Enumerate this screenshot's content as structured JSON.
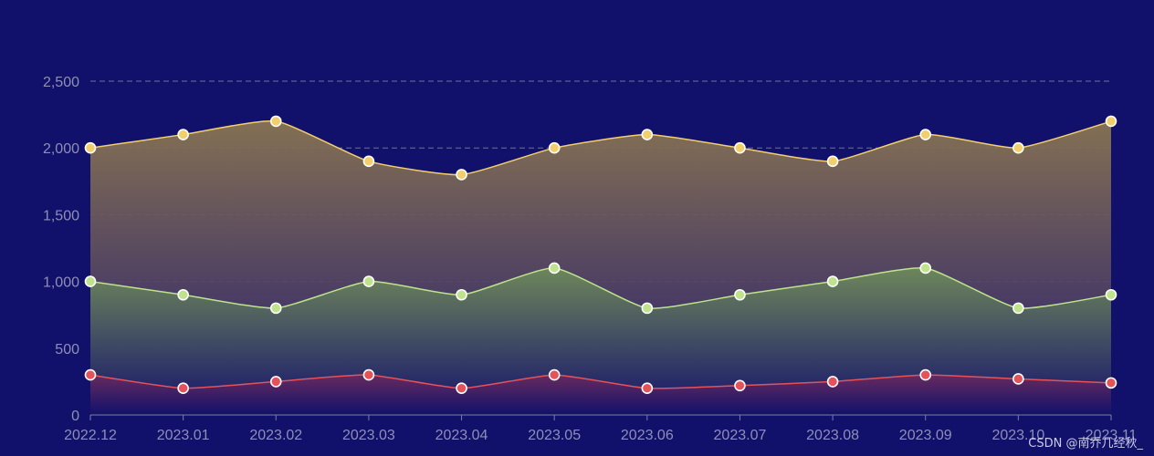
{
  "chart_data": {
    "type": "area",
    "categories": [
      "2022.12",
      "2023.01",
      "2023.02",
      "2023.03",
      "2023.04",
      "2023.05",
      "2023.06",
      "2023.07",
      "2023.08",
      "2023.09",
      "2023.10",
      "2023.11"
    ],
    "series": [
      {
        "values": [
          2000,
          2100,
          2200,
          1900,
          1800,
          2000,
          2100,
          2000,
          1900,
          2100,
          2000,
          2200
        ],
        "color": "#f2cf6c",
        "fill_top": "#8a7552",
        "fill_bottom": "#2a1f6e"
      },
      {
        "values": [
          1000,
          900,
          800,
          1000,
          900,
          1100,
          800,
          900,
          1000,
          1100,
          800,
          900
        ],
        "color": "#bfe38c",
        "fill_top": "#6f8a5a",
        "fill_bottom": "#11116b"
      },
      {
        "values": [
          300,
          200,
          250,
          300,
          200,
          300,
          200,
          220,
          250,
          300,
          270,
          240
        ],
        "color": "#e5535a",
        "fill_top": "#6a2a5e",
        "fill_bottom": "#11116b"
      }
    ],
    "yticks": [
      "0",
      "500",
      "1,000",
      "1,500",
      "2,000",
      "2,500"
    ],
    "ylim": [
      0,
      2500
    ],
    "grid": true,
    "smooth": true,
    "marker_fill_colors": [
      "#f2cf6c",
      "#bfe38c",
      "#e5535a"
    ]
  },
  "watermark": "CSDN @南乔几经秋_"
}
